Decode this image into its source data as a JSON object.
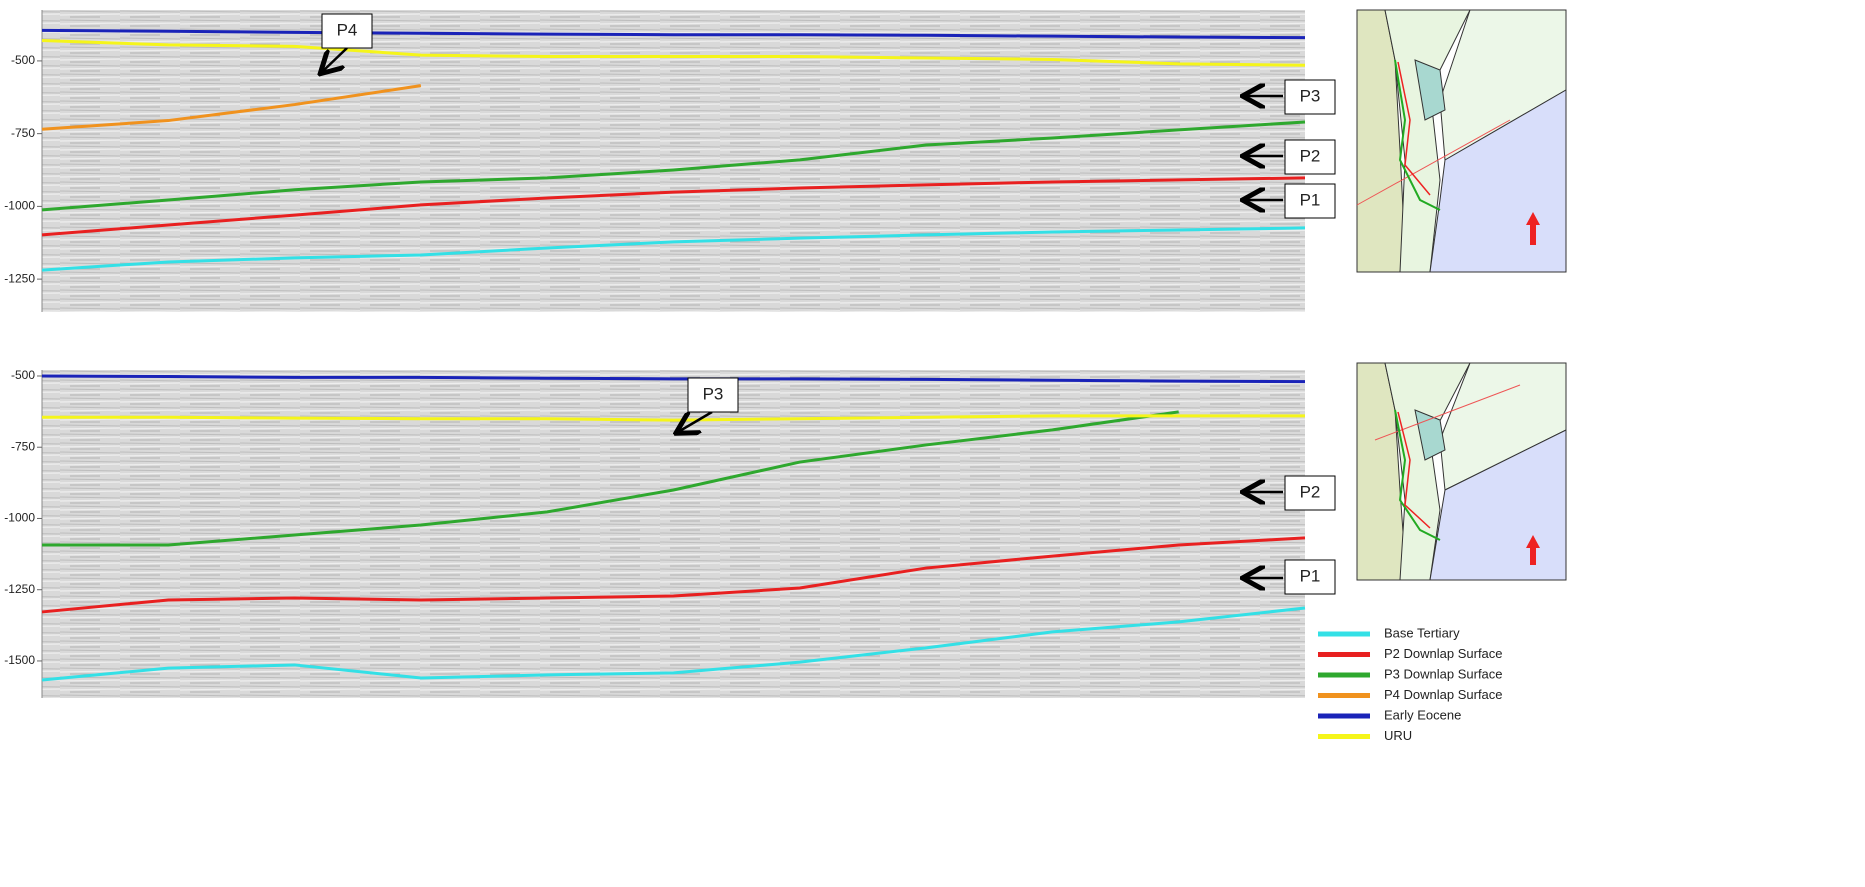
{
  "chart_data": [
    {
      "type": "line",
      "categories": [
        null,
        null,
        null,
        null,
        null,
        null,
        null,
        null,
        null,
        null,
        null
      ],
      "ylim": [
        -1363,
        -325
      ],
      "yticks": [
        -500,
        -750,
        -1000,
        -1250
      ],
      "annotations": [
        "P4",
        "P3",
        "P2",
        "P1"
      ],
      "series": [
        {
          "color": "#1a23b8",
          "values": [
            -395,
            -398,
            -402,
            -405,
            -408,
            -410,
            -410,
            -412,
            -415,
            -418,
            -420
          ]
        },
        {
          "color": "#f5f51a",
          "values": [
            -430,
            -445,
            -450,
            -480,
            -485,
            -485,
            -485,
            -490,
            -495,
            -510,
            -515
          ]
        },
        {
          "color": "#f0921e",
          "values": [
            -735,
            -705,
            -650,
            -585,
            null,
            null,
            null,
            null,
            null,
            null,
            null
          ]
        },
        {
          "color": "#2ea82e",
          "values": [
            -1012,
            -978,
            -943,
            -916,
            -902,
            -875,
            -840,
            -789,
            -765,
            -737,
            -710
          ]
        },
        {
          "color": "#e82020",
          "values": [
            -1098,
            -1064,
            -1030,
            -995,
            -971,
            -951,
            -937,
            -926,
            -916,
            -909,
            -902
          ]
        },
        {
          "color": "#33e0e6",
          "values": [
            -1219,
            -1191,
            -1177,
            -1167,
            -1143,
            -1122,
            -1109,
            -1098,
            -1088,
            -1081,
            -1074
          ]
        }
      ]
    },
    {
      "type": "line",
      "categories": [
        null,
        null,
        null,
        null,
        null,
        null,
        null,
        null,
        null,
        null,
        null
      ],
      "ylim": [
        -1630,
        -479
      ],
      "yticks": [
        -500,
        -750,
        -1000,
        -1250,
        -1500
      ],
      "annotations": [
        "P3",
        "P2",
        "P1"
      ],
      "series": [
        {
          "name": "Base Tertiary",
          "color": "#33e0e6",
          "values": [
            -1567,
            -1525,
            -1514,
            -1560,
            -1549,
            -1542,
            -1504,
            -1454,
            -1398,
            -1363,
            -1314
          ]
        },
        {
          "name": "P2 Downlap Surface",
          "color": "#e82020",
          "values": [
            -1328,
            -1286,
            -1279,
            -1286,
            -1279,
            -1272,
            -1244,
            -1174,
            -1132,
            -1093,
            -1068
          ]
        },
        {
          "name": "P3 Downlap Surface",
          "color": "#2ea82e",
          "values": [
            -1093,
            -1093,
            -1058,
            -1023,
            -977,
            -900,
            -802,
            -742,
            -689,
            -626,
            null
          ]
        },
        {
          "name": "P4 Downlap Surface",
          "color": "#f0921e",
          "values": [
            null,
            null,
            null,
            null,
            null,
            null,
            null,
            null,
            null,
            null,
            null
          ]
        },
        {
          "name": "Early Eocene",
          "color": "#1a23b8",
          "values": [
            -500,
            -502,
            -505,
            -505,
            -508,
            -510,
            -510,
            -512,
            -515,
            -518,
            -520
          ]
        },
        {
          "name": "URU",
          "color": "#f5f51a",
          "values": [
            -645,
            -645,
            -648,
            -650,
            -650,
            -655,
            -650,
            -645,
            -640,
            -640,
            -640
          ]
        }
      ]
    }
  ]
}
